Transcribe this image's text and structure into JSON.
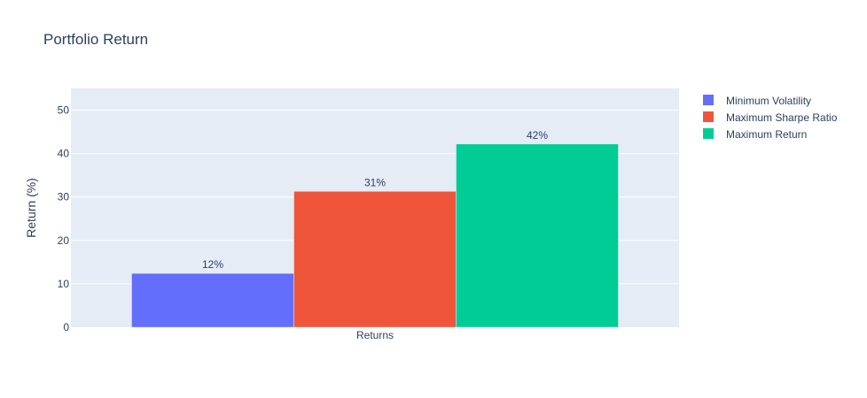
{
  "chart_data": {
    "type": "bar",
    "title": "Portfolio Return",
    "xlabel": "",
    "ylabel": "Return (%)",
    "categories": [
      "Returns"
    ],
    "ylim": [
      0,
      55
    ],
    "yticks": [
      0,
      10,
      20,
      30,
      40,
      50
    ],
    "grid": true,
    "legend_position": "top-right",
    "series": [
      {
        "name": "Minimum Volatility",
        "values": [
          12.4
        ],
        "label": "12%",
        "color": "#636efa"
      },
      {
        "name": "Maximum Sharpe Ratio",
        "values": [
          31.3
        ],
        "label": "31%",
        "color": "#ef553b"
      },
      {
        "name": "Maximum Return",
        "values": [
          42.2
        ],
        "label": "42%",
        "color": "#00cc96"
      }
    ],
    "colors": {
      "plot_background": "#e5ecf6",
      "text": "#2a3f5f",
      "grid": "#ffffff"
    }
  }
}
